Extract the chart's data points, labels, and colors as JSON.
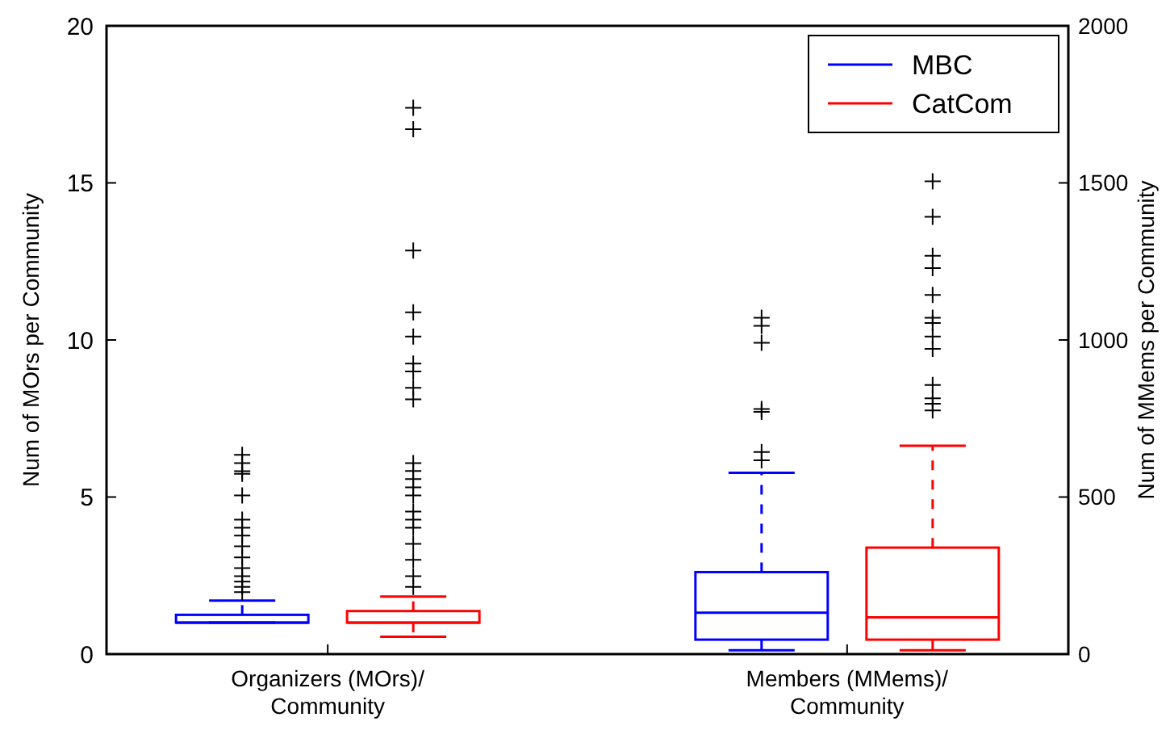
{
  "chart_data": {
    "type": "box",
    "categories": [
      "Organizers (MOrs)/\nCommunity",
      "Members (MMems)/\nCommunity"
    ],
    "ylabel": "Num of MOrs per Community",
    "y2label": "Num of MMems per Community",
    "ylim": [
      0,
      20
    ],
    "yticks": [
      0,
      5,
      10,
      15,
      20
    ],
    "y2lim": [
      0,
      2000
    ],
    "y2ticks": [
      0,
      500,
      1000,
      1500,
      2000
    ],
    "legend": "top right",
    "marker": "cross",
    "line_style": "dashed",
    "grid": false,
    "series": [
      {
        "name": "MBC",
        "color": "#0000ff",
        "boxes": [
          {
            "low": 1,
            "q1": 1,
            "median": 1,
            "q3": 1.25,
            "high": 1.7,
            "outliers": [
              6.34,
              6.08,
              5.82,
              5.74,
              5.05,
              4.28,
              4.02,
              3.77,
              3.43,
              3.08,
              2.74,
              2.48,
              2.31,
              2.14,
              1.97
            ]
          },
          null
        ]
      },
      {
        "name": "CatCom",
        "color": "#ff0000",
        "boxes": [
          {
            "low": 0.55,
            "q1": 1,
            "median": 1,
            "q3": 1.37,
            "high": 1.83,
            "outliers": [
              17.39,
              16.71,
              12.85,
              10.88,
              10.11,
              9.25,
              9.0,
              8.48,
              8.11,
              6.08,
              5.83,
              5.57,
              5.31,
              5.05,
              4.54,
              4.28,
              4.02,
              3.51,
              3.0,
              2.48,
              2.14
            ]
          },
          null
        ]
      },
      {
        "color": "#0000ff",
        "axis": "y2",
        "boxes": [
          null,
          {
            "low": 12,
            "q1": 46,
            "median": 132,
            "q3": 261,
            "high": 577,
            "outliers": [
              1071,
              1045,
              991,
              780,
              771,
              643,
              617
            ]
          }
        ]
      },
      {
        "color": "#ff0000",
        "axis": "y2",
        "boxes": [
          null,
          {
            "low": 12,
            "q1": 46,
            "median": 117,
            "q3": 339,
            "high": 663,
            "outliers": [
              1505,
              1392,
              1268,
              1229,
              1143,
              1071,
              1054,
              1011,
              972,
              857,
              814,
              797,
              776
            ]
          }
        ]
      }
    ]
  }
}
